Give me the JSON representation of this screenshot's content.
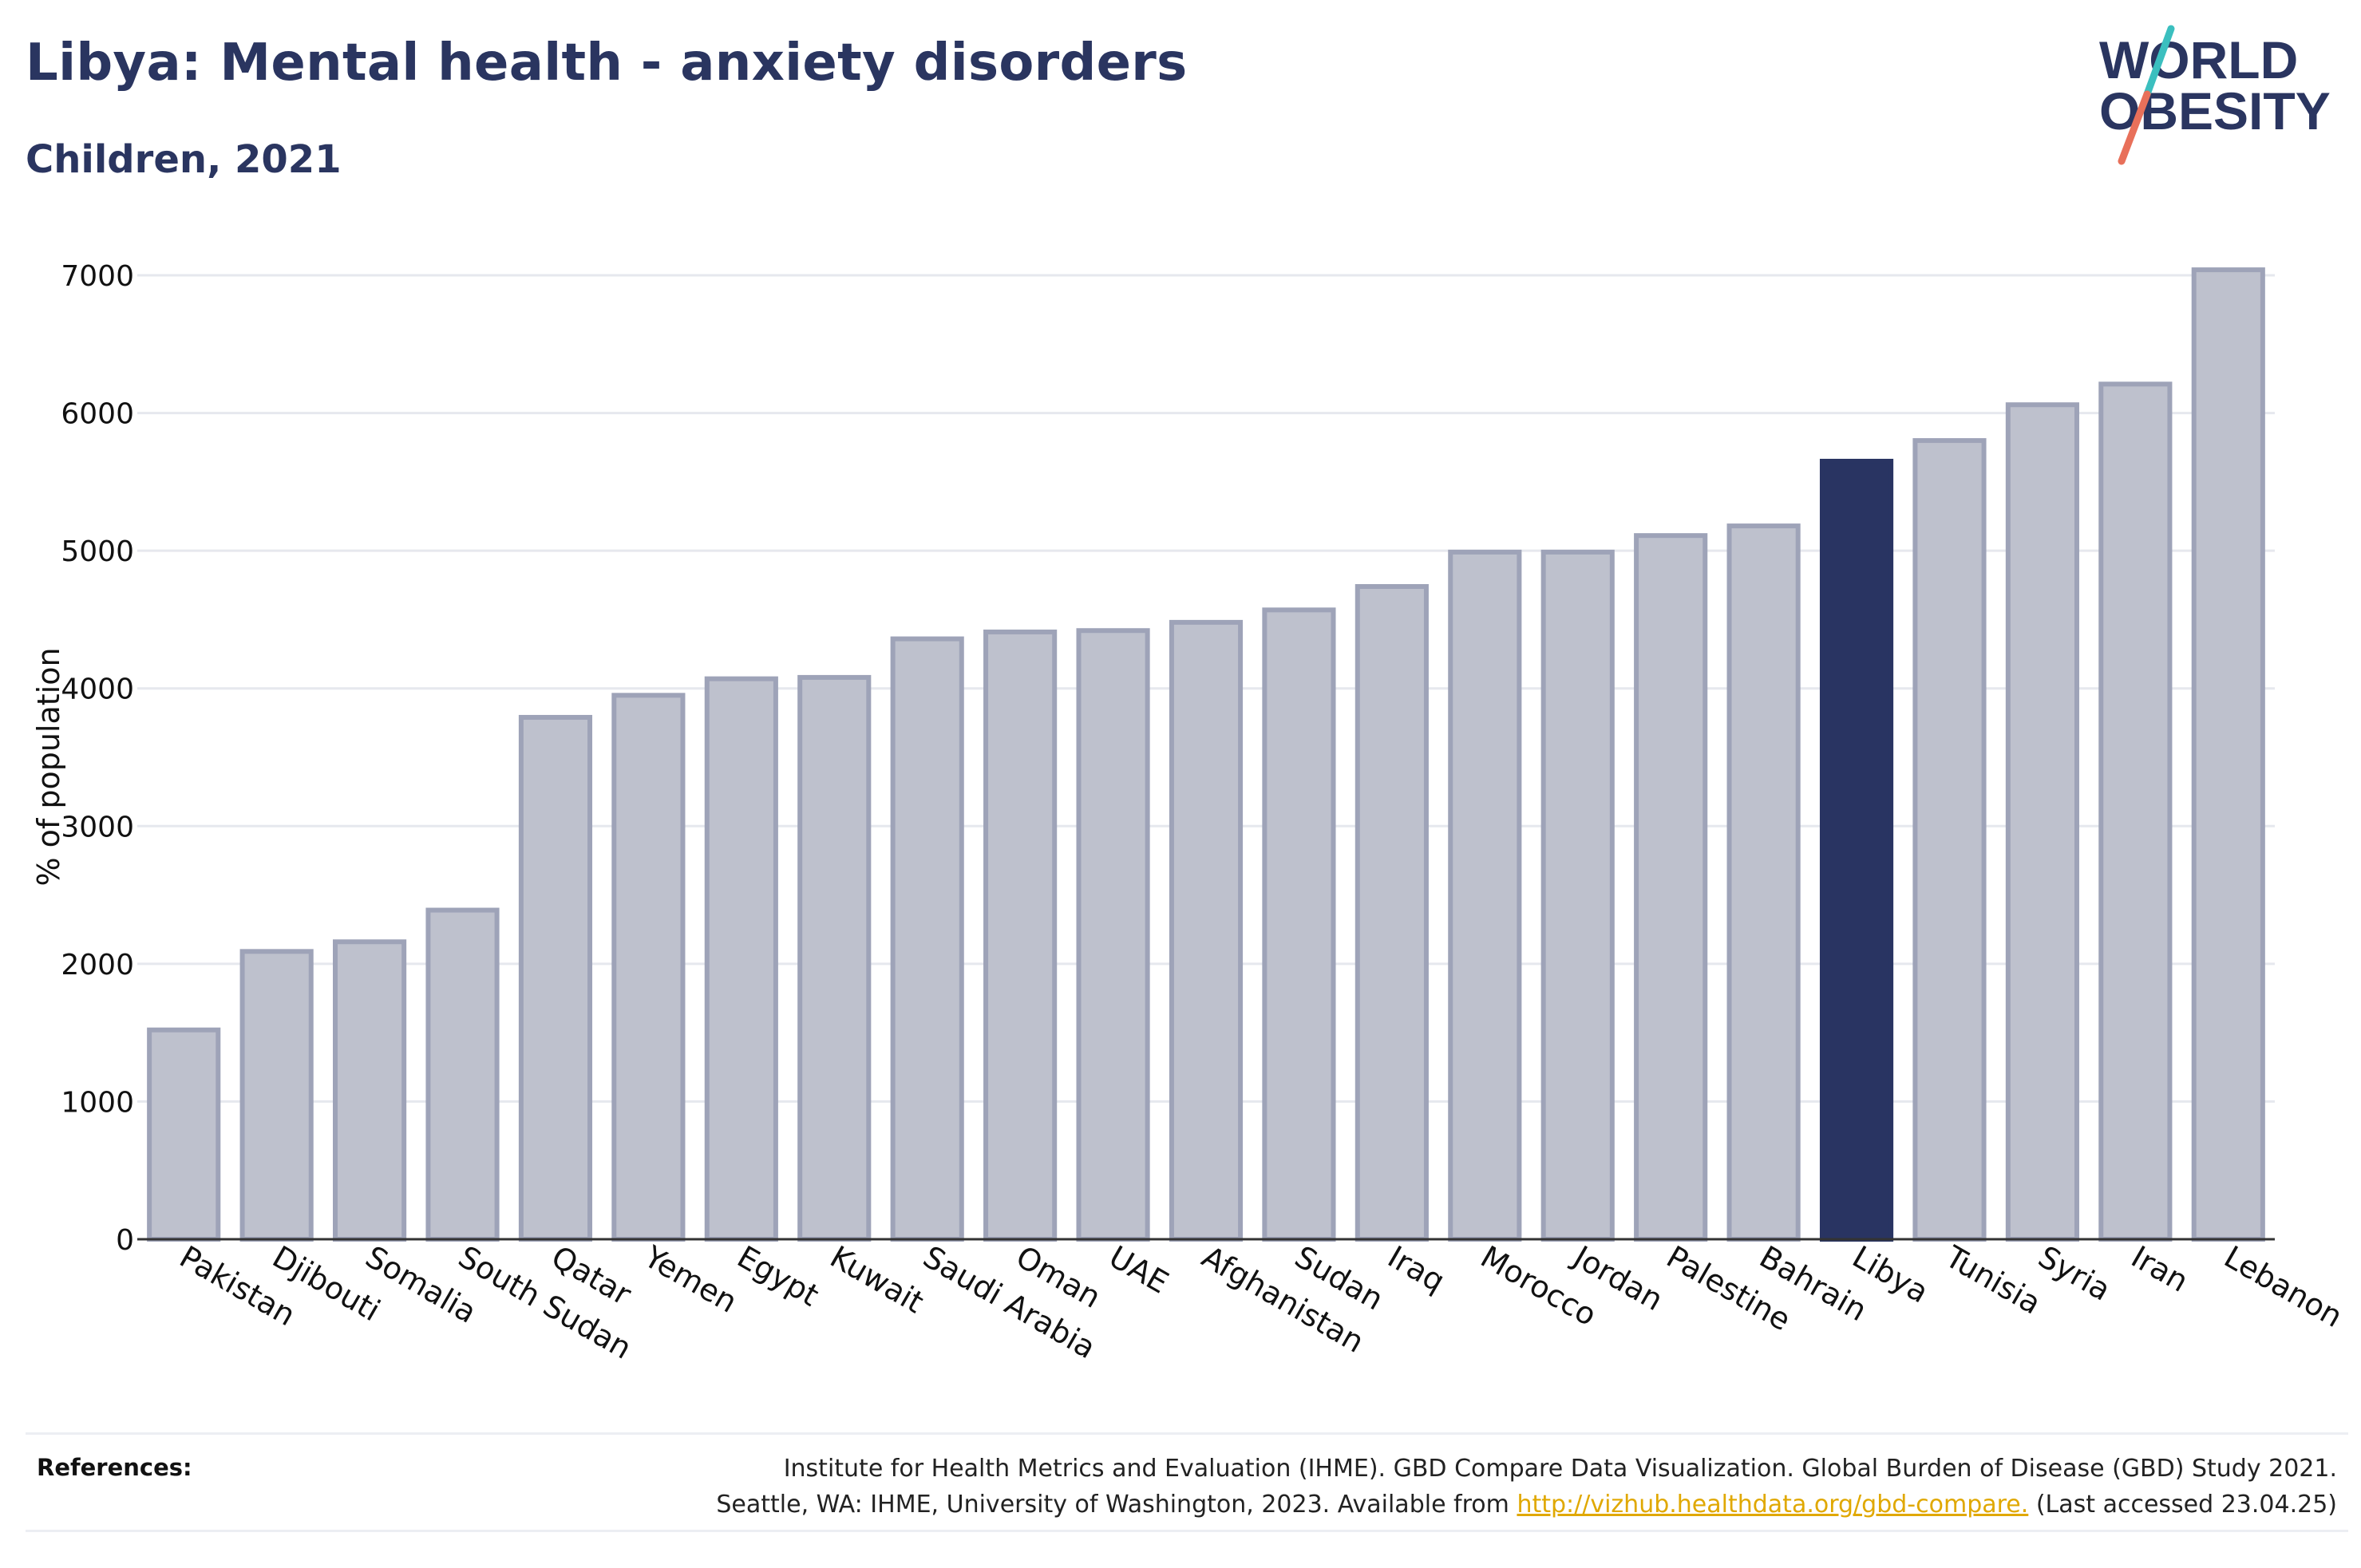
{
  "header": {
    "title": "Libya: Mental health - anxiety disorders",
    "subtitle": "Children, 2021"
  },
  "logo": {
    "line1": "WORLD",
    "line2": "OBESITY",
    "slash_colors": [
      "#3bbfbf",
      "#e8705a"
    ]
  },
  "colors": {
    "bar": "#bec1cd",
    "bar_stroke": "#9ea3b8",
    "highlight": "#293462",
    "text": "#2a3560",
    "grid": "#e6e8ee",
    "link": "#e0a800"
  },
  "chart_data": {
    "type": "bar",
    "title": "Libya: Mental health - anxiety disorders",
    "subtitle": "Children, 2021",
    "xlabel": "",
    "ylabel": "% of population",
    "ylim": [
      0,
      7000
    ],
    "yticks": [
      0,
      1000,
      2000,
      3000,
      4000,
      5000,
      6000,
      7000
    ],
    "grid": true,
    "highlight": "Libya",
    "categories": [
      "Pakistan",
      "Djibouti",
      "Somalia",
      "South Sudan",
      "Qatar",
      "Yemen",
      "Egypt",
      "Kuwait",
      "Saudi Arabia",
      "Oman",
      "UAE",
      "Afghanistan",
      "Sudan",
      "Iraq",
      "Morocco",
      "Jordan",
      "Palestine",
      "Bahrain",
      "Libya",
      "Tunisia",
      "Syria",
      "Iran",
      "Lebanon"
    ],
    "values": [
      1520,
      2090,
      2160,
      2390,
      3790,
      3950,
      4070,
      4080,
      4360,
      4410,
      4420,
      4480,
      4570,
      4740,
      4990,
      4990,
      5110,
      5180,
      5650,
      5800,
      6060,
      6210,
      7040
    ]
  },
  "references": {
    "label": "References:",
    "line1": "Institute for Health Metrics and Evaluation (IHME). GBD Compare Data Visualization. Global Burden of Disease (GBD) Study 2021.",
    "line2_pre": "Seattle, WA: IHME, University of Washington, 2023. Available from",
    "link": "http://vizhub.healthdata.org/gbd-compare.",
    "line2_post": "(Last accessed 23.04.25)"
  }
}
